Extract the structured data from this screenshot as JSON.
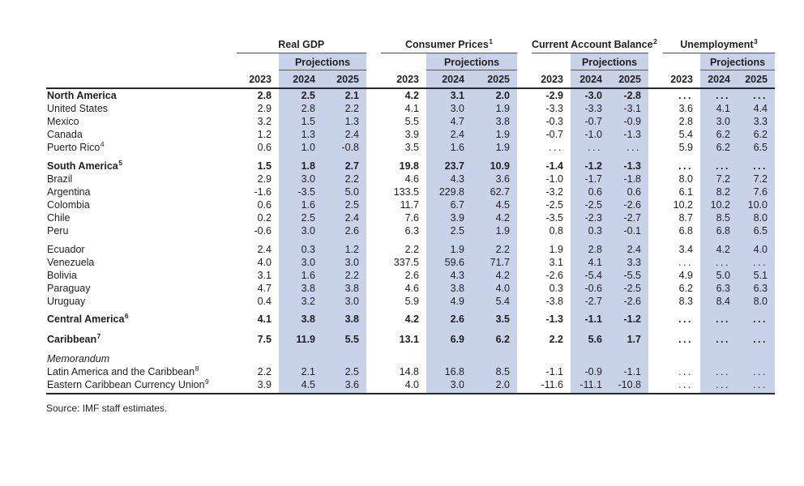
{
  "page": {
    "source_note": "Source: IMF staff estimates."
  },
  "table": {
    "projections_label": "Projections",
    "years": [
      "2023",
      "2024",
      "2025"
    ],
    "col_groups": [
      {
        "title": "Real GDP",
        "sup": ""
      },
      {
        "title": "Consumer Prices",
        "sup": "1"
      },
      {
        "title": "Current Account Balance",
        "sup": "2"
      },
      {
        "title": "Unemployment",
        "sup": "3"
      }
    ],
    "shade_color": "#c8d2e9",
    "rows": [
      {
        "label": "North America",
        "sup": "",
        "style": "section",
        "spacer": 0,
        "values": [
          "2.8",
          "2.5",
          "2.1",
          "4.2",
          "3.1",
          "2.0",
          "-2.9",
          "-3.0",
          "-2.8",
          "...",
          "...",
          "..."
        ]
      },
      {
        "label": "United States",
        "sup": "",
        "style": "regular",
        "spacer": 0,
        "values": [
          "2.9",
          "2.8",
          "2.2",
          "4.1",
          "3.0",
          "1.9",
          "-3.3",
          "-3.3",
          "-3.1",
          "3.6",
          "4.1",
          "4.4"
        ]
      },
      {
        "label": "Mexico",
        "sup": "",
        "style": "regular",
        "spacer": 0,
        "values": [
          "3.2",
          "1.5",
          "1.3",
          "5.5",
          "4.7",
          "3.8",
          "-0.3",
          "-0.7",
          "-0.9",
          "2.8",
          "3.0",
          "3.3"
        ]
      },
      {
        "label": "Canada",
        "sup": "",
        "style": "regular",
        "spacer": 0,
        "values": [
          "1.2",
          "1.3",
          "2.4",
          "3.9",
          "2.4",
          "1.9",
          "-0.7",
          "-1.0",
          "-1.3",
          "5.4",
          "6.2",
          "6.2"
        ]
      },
      {
        "label": "Puerto Rico",
        "sup": "4",
        "style": "regular",
        "spacer": 0,
        "values": [
          "0.6",
          "1.0",
          "-0.8",
          "3.5",
          "1.6",
          "1.9",
          "...",
          "...",
          "...",
          "5.9",
          "6.2",
          "6.5"
        ]
      },
      {
        "label": "South America",
        "sup": "5",
        "style": "section",
        "spacer": 7,
        "values": [
          "1.5",
          "1.8",
          "2.7",
          "19.8",
          "23.7",
          "10.9",
          "-1.4",
          "-1.2",
          "-1.3",
          "...",
          "...",
          "..."
        ]
      },
      {
        "label": "Brazil",
        "sup": "",
        "style": "regular",
        "spacer": 0,
        "values": [
          "2.9",
          "3.0",
          "2.2",
          "4.6",
          "4.3",
          "3.6",
          "-1.0",
          "-1.7",
          "-1.8",
          "8.0",
          "7.2",
          "7.2"
        ]
      },
      {
        "label": "Argentina",
        "sup": "",
        "style": "regular",
        "spacer": 0,
        "values": [
          "-1.6",
          "-3.5",
          "5.0",
          "133.5",
          "229.8",
          "62.7",
          "-3.2",
          "0.6",
          "0.6",
          "6.1",
          "8.2",
          "7.6"
        ]
      },
      {
        "label": "Colombia",
        "sup": "",
        "style": "regular",
        "spacer": 0,
        "values": [
          "0.6",
          "1.6",
          "2.5",
          "11.7",
          "6.7",
          "4.5",
          "-2.5",
          "-2.5",
          "-2.6",
          "10.2",
          "10.2",
          "10.0"
        ]
      },
      {
        "label": "Chile",
        "sup": "",
        "style": "regular",
        "spacer": 0,
        "values": [
          "0.2",
          "2.5",
          "2.4",
          "7.6",
          "3.9",
          "4.2",
          "-3.5",
          "-2.3",
          "-2.7",
          "8.7",
          "8.5",
          "8.0"
        ]
      },
      {
        "label": "Peru",
        "sup": "",
        "style": "regular",
        "spacer": 0,
        "values": [
          "-0.6",
          "3.0",
          "2.6",
          "6.3",
          "2.5",
          "1.9",
          "0.8",
          "0.3",
          "-0.1",
          "6.8",
          "6.8",
          "6.5"
        ]
      },
      {
        "label": "Ecuador",
        "sup": "",
        "style": "regular",
        "spacer": 7,
        "values": [
          "2.4",
          "0.3",
          "1.2",
          "2.2",
          "1.9",
          "2.2",
          "1.9",
          "2.8",
          "2.4",
          "3.4",
          "4.2",
          "4.0"
        ]
      },
      {
        "label": "Venezuela",
        "sup": "",
        "style": "regular",
        "spacer": 0,
        "values": [
          "4.0",
          "3.0",
          "3.0",
          "337.5",
          "59.6",
          "71.7",
          "3.1",
          "4.1",
          "3.3",
          "...",
          "...",
          "..."
        ]
      },
      {
        "label": "Bolivia",
        "sup": "",
        "style": "regular",
        "spacer": 0,
        "values": [
          "3.1",
          "1.6",
          "2.2",
          "2.6",
          "4.3",
          "4.2",
          "-2.6",
          "-5.4",
          "-5.5",
          "4.9",
          "5.0",
          "5.1"
        ]
      },
      {
        "label": "Paraguay",
        "sup": "",
        "style": "regular",
        "spacer": 0,
        "values": [
          "4.7",
          "3.8",
          "3.8",
          "4.6",
          "3.8",
          "4.0",
          "0.3",
          "-0.6",
          "-2.5",
          "6.2",
          "6.3",
          "6.3"
        ]
      },
      {
        "label": "Uruguay",
        "sup": "",
        "style": "regular",
        "spacer": 0,
        "values": [
          "0.4",
          "3.2",
          "3.0",
          "5.9",
          "4.9",
          "5.4",
          "-3.8",
          "-2.7",
          "-2.6",
          "8.3",
          "8.4",
          "8.0"
        ]
      },
      {
        "label": "Central America",
        "sup": "6",
        "style": "section",
        "spacer": 6,
        "values": [
          "4.1",
          "3.8",
          "3.8",
          "4.2",
          "2.6",
          "3.5",
          "-1.3",
          "-1.1",
          "-1.2",
          "...",
          "...",
          "..."
        ]
      },
      {
        "label": "Caribbean",
        "sup": "7",
        "style": "section",
        "spacer": 9,
        "values": [
          "7.5",
          "11.9",
          "5.5",
          "13.1",
          "6.9",
          "6.2",
          "2.2",
          "5.6",
          "1.7",
          "...",
          "...",
          "..."
        ]
      },
      {
        "label": "Memorandum",
        "sup": "",
        "style": "memo",
        "spacer": 8
      },
      {
        "label": "Latin America and the Caribbean",
        "sup": "8",
        "style": "regular",
        "spacer": 0,
        "values": [
          "2.2",
          "2.1",
          "2.5",
          "14.8",
          "16.8",
          "8.5",
          "-1.1",
          "-0.9",
          "-1.1",
          "...",
          "...",
          "..."
        ]
      },
      {
        "label": "Eastern Caribbean Currency Union",
        "sup": "9",
        "style": "regular",
        "spacer": 0,
        "values": [
          "3.9",
          "4.5",
          "3.6",
          "4.0",
          "3.0",
          "2.0",
          "-11.6",
          "-11.1",
          "-10.8",
          "...",
          "...",
          "..."
        ]
      }
    ]
  }
}
